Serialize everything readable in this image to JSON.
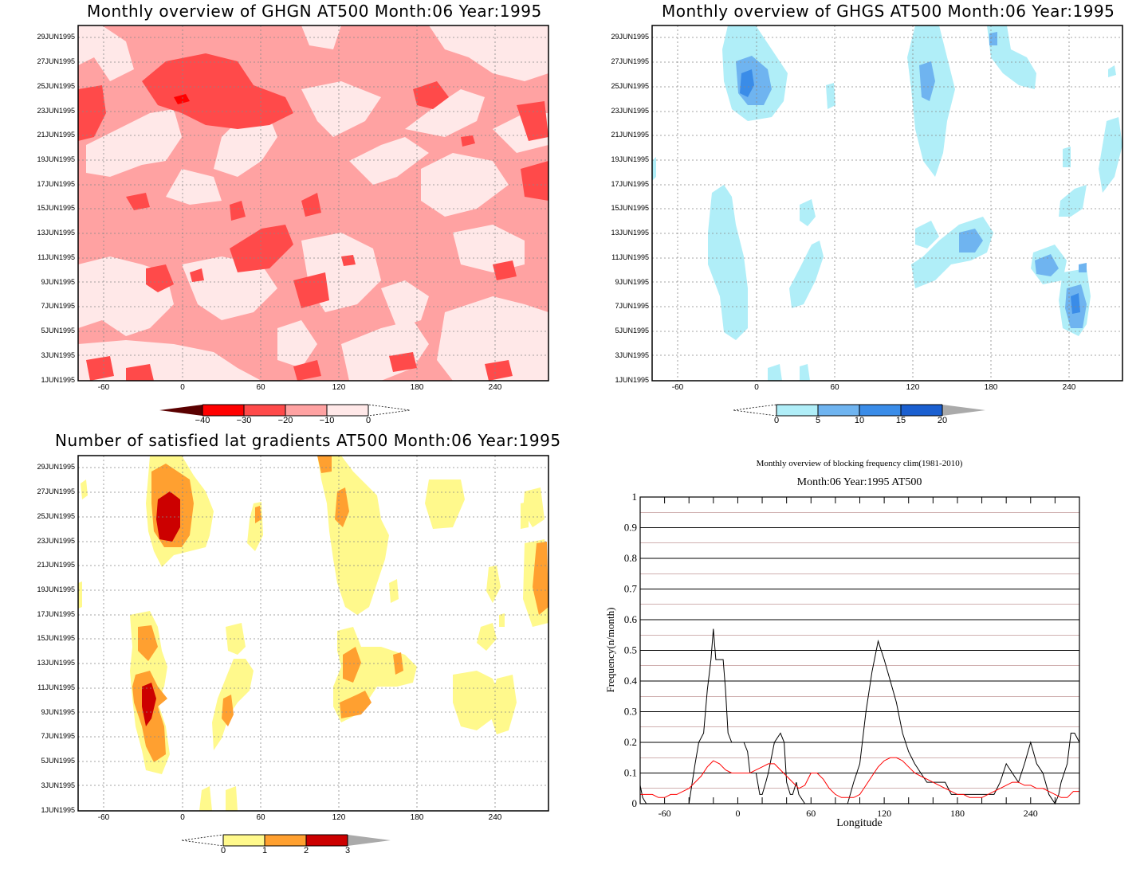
{
  "panels": {
    "ghgn": {
      "title": "Monthly overview of GHGN AT500 Month:06 Year:1995",
      "colorbar_labels": [
        "−40",
        "−30",
        "−20",
        "−10",
        "0"
      ],
      "colors": [
        "#5a0000",
        "#ff0000",
        "#ff4a4a",
        "#ffa2a2",
        "#ffe8e8"
      ]
    },
    "ghgs": {
      "title": "Monthly overview of GHGS AT500 Month:06 Year:1995",
      "colorbar_labels": [
        "0",
        "5",
        "10",
        "15",
        "20"
      ],
      "colors": [
        "#b0eef8",
        "#6fb4f0",
        "#3a8ce8",
        "#1a5fd0",
        "#aaaaaa"
      ]
    },
    "lat": {
      "title": "Number of satisfied lat gradients AT500 Month:06 Year:1995",
      "colorbar_labels": [
        "0",
        "1",
        "2",
        "3"
      ],
      "colors": [
        "#fff98c",
        "#ffa030",
        "#cc0000",
        "#aaaaaa"
      ]
    }
  },
  "date_ticks": [
    "1JUN1995",
    "3JUN1995",
    "5JUN1995",
    "7JUN1995",
    "9JUN1995",
    "11JUN1995",
    "13JUN1995",
    "15JUN1995",
    "17JUN1995",
    "19JUN1995",
    "21JUN1995",
    "23JUN1995",
    "25JUN1995",
    "27JUN1995",
    "29JUN1995"
  ],
  "lon_ticks": [
    "-60",
    "0",
    "60",
    "120",
    "180",
    "240"
  ],
  "chart_data": {
    "type": "line",
    "title": "Monthly overview of blocking frequency clim(1981-2010)",
    "subtitle": "Month:06 Year:1995  AT500",
    "xlabel": "Longitude",
    "ylabel": "Frequency(n/month)",
    "xlim": [
      -80,
      280
    ],
    "ylim": [
      0,
      1
    ],
    "x_ticks": [
      "-60",
      "0",
      "60",
      "120",
      "180",
      "240"
    ],
    "y_ticks": [
      "0",
      "0.1",
      "0.2",
      "0.3",
      "0.4",
      "0.5",
      "0.6",
      "0.7",
      "0.8",
      "0.9",
      "1"
    ],
    "grid": true,
    "series": [
      {
        "color": "#000000",
        "x": [
          -80,
          -78,
          -75,
          -70,
          -60,
          -50,
          -40,
          -35,
          -32,
          -28,
          -25,
          -22,
          -20,
          -18,
          -15,
          -12,
          -10,
          -8,
          -5,
          0,
          5,
          8,
          10,
          13,
          15,
          18,
          20,
          23,
          25,
          30,
          35,
          38,
          40,
          43,
          45,
          48,
          50,
          55,
          58,
          60,
          62,
          65,
          70,
          75,
          80,
          85,
          90,
          95,
          100,
          105,
          110,
          115,
          120,
          125,
          130,
          135,
          140,
          145,
          150,
          155,
          160,
          165,
          170,
          175,
          180,
          185,
          190,
          195,
          200,
          205,
          210,
          215,
          220,
          225,
          230,
          235,
          240,
          245,
          250,
          255,
          260,
          263,
          265,
          270,
          273,
          276,
          280
        ],
        "y": [
          0.06,
          0.02,
          0.0,
          0.0,
          0.0,
          0.0,
          0.0,
          0.13,
          0.2,
          0.23,
          0.37,
          0.47,
          0.57,
          0.47,
          0.47,
          0.47,
          0.37,
          0.23,
          0.2,
          0.2,
          0.2,
          0.17,
          0.1,
          0.1,
          0.1,
          0.03,
          0.03,
          0.07,
          0.1,
          0.2,
          0.23,
          0.2,
          0.07,
          0.03,
          0.03,
          0.07,
          0.03,
          0.0,
          0.0,
          0.0,
          0.0,
          0.0,
          0.0,
          0.0,
          0.0,
          0.0,
          0.0,
          0.07,
          0.13,
          0.3,
          0.43,
          0.53,
          0.47,
          0.4,
          0.33,
          0.23,
          0.17,
          0.13,
          0.1,
          0.07,
          0.07,
          0.07,
          0.07,
          0.03,
          0.03,
          0.03,
          0.03,
          0.03,
          0.03,
          0.03,
          0.03,
          0.07,
          0.13,
          0.1,
          0.07,
          0.13,
          0.2,
          0.13,
          0.1,
          0.03,
          0.0,
          0.03,
          0.07,
          0.13,
          0.23,
          0.23,
          0.2
        ]
      },
      {
        "color": "#ff0000",
        "x": [
          -80,
          -75,
          -70,
          -65,
          -60,
          -55,
          -50,
          -45,
          -40,
          -35,
          -30,
          -25,
          -20,
          -15,
          -10,
          -5,
          0,
          5,
          10,
          15,
          20,
          25,
          30,
          35,
          40,
          45,
          50,
          55,
          60,
          65,
          70,
          75,
          80,
          85,
          90,
          95,
          100,
          105,
          110,
          115,
          120,
          125,
          130,
          135,
          140,
          145,
          150,
          155,
          160,
          165,
          170,
          175,
          180,
          185,
          190,
          195,
          200,
          205,
          210,
          215,
          220,
          225,
          230,
          235,
          240,
          245,
          250,
          255,
          260,
          265,
          270,
          275,
          280
        ],
        "y": [
          0.03,
          0.03,
          0.03,
          0.02,
          0.02,
          0.03,
          0.03,
          0.04,
          0.05,
          0.07,
          0.09,
          0.12,
          0.14,
          0.13,
          0.11,
          0.1,
          0.1,
          0.1,
          0.1,
          0.11,
          0.12,
          0.13,
          0.13,
          0.11,
          0.09,
          0.07,
          0.05,
          0.06,
          0.1,
          0.1,
          0.08,
          0.05,
          0.03,
          0.02,
          0.02,
          0.02,
          0.03,
          0.06,
          0.09,
          0.12,
          0.14,
          0.15,
          0.15,
          0.14,
          0.12,
          0.1,
          0.09,
          0.08,
          0.07,
          0.06,
          0.05,
          0.04,
          0.03,
          0.03,
          0.02,
          0.02,
          0.02,
          0.03,
          0.04,
          0.05,
          0.06,
          0.07,
          0.07,
          0.06,
          0.06,
          0.05,
          0.05,
          0.04,
          0.03,
          0.02,
          0.02,
          0.04,
          0.04
        ]
      }
    ]
  }
}
